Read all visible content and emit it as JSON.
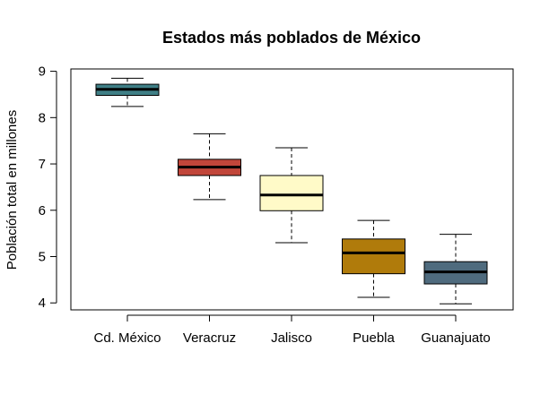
{
  "chart_data": {
    "type": "box",
    "title": "Estados más poblados de México",
    "xlabel": "",
    "ylabel": "Población total en millones",
    "ylim": [
      3.85,
      9.05
    ],
    "yticks": [
      4,
      5,
      6,
      7,
      8,
      9
    ],
    "categories": [
      "Cd. México",
      "Veracruz",
      "Jalisco",
      "Puebla",
      "Guanajuato"
    ],
    "colors": [
      "#3f7f86",
      "#c1463a",
      "#fffac8",
      "#b07b0b",
      "#4f6b7e"
    ],
    "boxes": [
      {
        "category": "Cd. México",
        "whisker_low": 8.24,
        "q1": 8.48,
        "median": 8.61,
        "q3": 8.72,
        "whisker_high": 8.85
      },
      {
        "category": "Veracruz",
        "whisker_low": 6.23,
        "q1": 6.75,
        "median": 6.93,
        "q3": 7.1,
        "whisker_high": 7.65
      },
      {
        "category": "Jalisco",
        "whisker_low": 5.3,
        "q1": 5.99,
        "median": 6.33,
        "q3": 6.75,
        "whisker_high": 7.35
      },
      {
        "category": "Puebla",
        "whisker_low": 4.12,
        "q1": 4.63,
        "median": 5.08,
        "q3": 5.38,
        "whisker_high": 5.78
      },
      {
        "category": "Guanajuato",
        "whisker_low": 3.98,
        "q1": 4.41,
        "median": 4.67,
        "q3": 4.89,
        "whisker_high": 5.48
      }
    ]
  }
}
